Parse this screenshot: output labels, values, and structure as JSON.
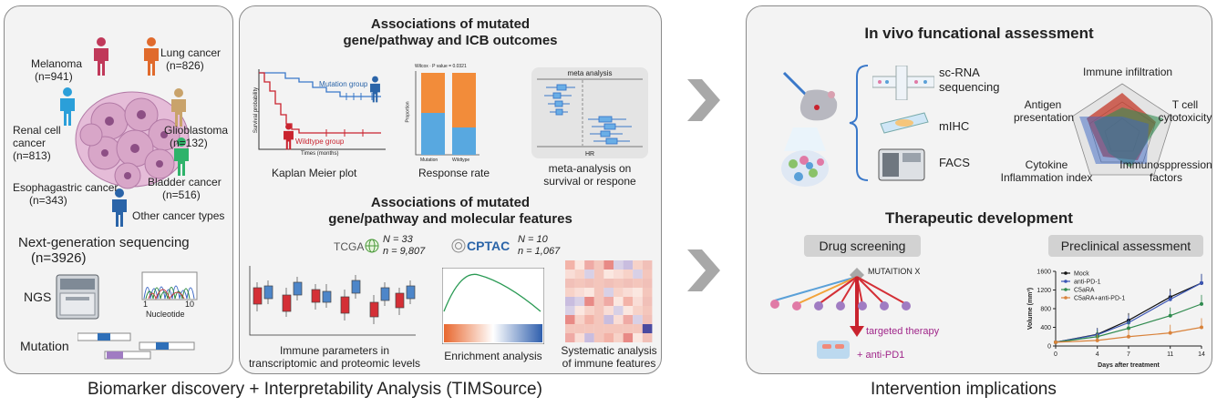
{
  "left": {
    "cancers": [
      {
        "name": "Melanoma",
        "n": "(n=941)",
        "color": "#c0395a"
      },
      {
        "name": "Lung cancer",
        "n": "(n=826)",
        "color": "#e06a2c"
      },
      {
        "name": "Renal cell",
        "name2": "cancer",
        "n": "(n=813)",
        "color": "#2b9fd9"
      },
      {
        "name": "Glioblastoma",
        "n": "(n=132)",
        "color": "#c9a36b"
      },
      {
        "name": "Bladder cancer",
        "n": "(n=516)",
        "color": "#2fb36a"
      },
      {
        "name": "Esophagastric cancer",
        "n": "(n=343)",
        "color": "#2b9fd9"
      },
      {
        "name": "Other cancer types",
        "n": "",
        "color": "#2a64a8"
      }
    ],
    "ngs_title": "Next-generation sequencing",
    "ngs_n": "(n=3926)",
    "ngs_label": "NGS",
    "nucleotide_label": "Nucleotide",
    "nuc_tick_1": "1",
    "nuc_tick_10": "10",
    "mutation_label": "Mutation"
  },
  "middle": {
    "title1_l1": "Associations of mutated",
    "title1_l2": "gene/pathway and ICB outcomes",
    "km": {
      "caption": "Kaplan Meier plot",
      "mutation_group": "Mutation group",
      "wildtype_group": "Wildtype group",
      "ylabel": "Survival probability",
      "xlabel": "Times (months)"
    },
    "response": {
      "caption": "Response rate",
      "pval": "Wilcox · P value = 0.0321",
      "ylabel": "Proportion",
      "x1": "Mutation",
      "x2": "Wildtype"
    },
    "meta": {
      "title": "meta analysis",
      "hr": "HR",
      "caption_l1": "meta-analysis on",
      "caption_l2": "survival or respone"
    },
    "title2_l1": "Associations of mutated",
    "title2_l2": "gene/pathway and molecular features",
    "tcga": {
      "label": "TCGA",
      "N": "N = 33",
      "n": "n = 9,807"
    },
    "cptac": {
      "label": "CPTAC",
      "N": "N = 10",
      "n": "n = 1,067"
    },
    "immune_l1": "Immune parameters in",
    "immune_l2": "transcriptomic and proteomic levels",
    "enrichment": "Enrichment analysis",
    "systematic_l1": "Systematic analysis",
    "systematic_l2": "of immune features"
  },
  "right": {
    "title1": "In vivo funcational assessment",
    "methods": [
      "sc-RNA",
      "sequencing",
      "mIHC",
      "FACS"
    ],
    "radar": {
      "top": "Immune infiltration",
      "left_l1": "Antigen",
      "left_l2": "presentation",
      "right_l1": "T cell",
      "right_l2": "cytotoxicity",
      "bl_l1": "Cytokine",
      "bl_l2": "Inflammation index",
      "br_l1": "Immunosppression",
      "br_l2": "factors"
    },
    "title2": "Therapeutic development",
    "drug_screening": "Drug screening",
    "mutation_x": "MUTAITION X",
    "targeted": "targeted therapy",
    "anti_pd1": "+ anti-PD1",
    "preclinical": "Preclinical assessment"
  },
  "chart_data": {
    "type": "line",
    "title": "",
    "xlabel": "Days after treatment",
    "ylabel": "Volume (mm³)",
    "x": [
      0,
      4,
      7,
      11,
      14
    ],
    "xticks": [
      "0",
      "4",
      "7",
      "11",
      "14"
    ],
    "yticks": [
      "0",
      "400",
      "800",
      "1200",
      "1600"
    ],
    "ylim": [
      0,
      1600
    ],
    "legend_placement": "top-left",
    "series": [
      {
        "name": "Mock",
        "color": "#111111",
        "values": [
          80,
          250,
          550,
          1050,
          1350
        ]
      },
      {
        "name": "anti-PD-1",
        "color": "#3a55b5",
        "values": [
          80,
          240,
          500,
          1000,
          1350
        ]
      },
      {
        "name": "C5aRA",
        "color": "#2f8a4e",
        "values": [
          80,
          200,
          380,
          650,
          900
        ]
      },
      {
        "name": "C5aRA+anti-PD-1",
        "color": "#d9823a",
        "values": [
          80,
          120,
          200,
          280,
          400
        ]
      }
    ]
  },
  "bottom": {
    "left_caption": "Biomarker discovery + Interpretability Analysis (TIMSource)",
    "right_caption": "Intervention implications"
  }
}
